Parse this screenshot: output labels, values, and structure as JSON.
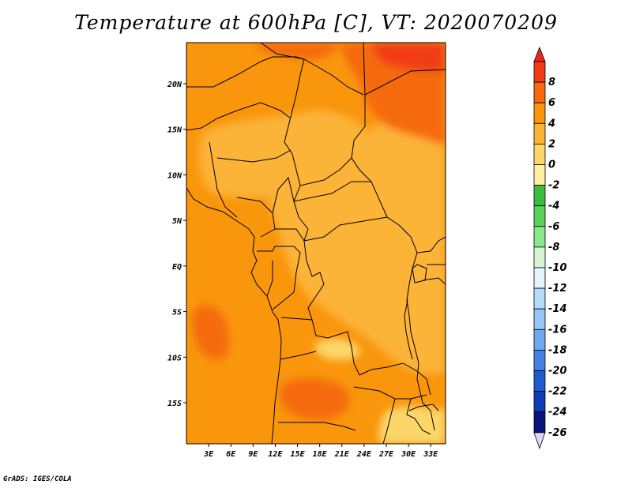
{
  "title": "Temperature at 600hPa [C], VT: 2020070209",
  "credit": "GrADS: IGES/COLA",
  "map": {
    "lon_range": [
      0,
      35
    ],
    "lat_range": [
      -19.5,
      24.5
    ],
    "lat_ticks": [
      {
        "value": 20,
        "label": "20N"
      },
      {
        "value": 15,
        "label": "15N"
      },
      {
        "value": 10,
        "label": "10N"
      },
      {
        "value": 5,
        "label": "5N"
      },
      {
        "value": 0,
        "label": "EQ"
      },
      {
        "value": -5,
        "label": "5S"
      },
      {
        "value": -10,
        "label": "10S"
      },
      {
        "value": -15,
        "label": "15S"
      }
    ],
    "lon_ticks": [
      {
        "value": 3,
        "label": "3E"
      },
      {
        "value": 6,
        "label": "6E"
      },
      {
        "value": 9,
        "label": "9E"
      },
      {
        "value": 12,
        "label": "12E"
      },
      {
        "value": 15,
        "label": "15E"
      },
      {
        "value": 18,
        "label": "18E"
      },
      {
        "value": 21,
        "label": "21E"
      },
      {
        "value": 24,
        "label": "24E"
      },
      {
        "value": 27,
        "label": "27E"
      },
      {
        "value": 30,
        "label": "30E"
      },
      {
        "value": 33,
        "label": "33E"
      }
    ]
  },
  "colorbar": {
    "levels": [
      {
        "label": "8",
        "color": "#f03c14"
      },
      {
        "label": "6",
        "color": "#f56a0f"
      },
      {
        "label": "4",
        "color": "#f9960c"
      },
      {
        "label": "2",
        "color": "#fbb337"
      },
      {
        "label": "0",
        "color": "#fdd66b"
      },
      {
        "label": "-2",
        "color": "#fff0a0"
      },
      {
        "label": "-4",
        "color": "#3cbc3c"
      },
      {
        "label": "-6",
        "color": "#5ad25a"
      },
      {
        "label": "-8",
        "color": "#8ce68c"
      },
      {
        "label": "-10",
        "color": "#d6f5d6"
      },
      {
        "label": "-12",
        "color": "#e4f4ff"
      },
      {
        "label": "-14",
        "color": "#b4dcfa"
      },
      {
        "label": "-16",
        "color": "#96c8f5"
      },
      {
        "label": "-18",
        "color": "#6eaaf0"
      },
      {
        "label": "-20",
        "color": "#4682e6"
      },
      {
        "label": "-22",
        "color": "#1e5ad2"
      },
      {
        "label": "-24",
        "color": "#0f3cb4"
      },
      {
        "label": "-26",
        "color": "#0a1478"
      }
    ],
    "top_triangle_color": "#e8281e",
    "bottom_triangle_color": "#e0d8f8"
  },
  "field_regions": [
    {
      "name": "southern-atlantic",
      "color": "#f9960c"
    },
    {
      "name": "saharan-warm-band",
      "color": "#f9960c"
    },
    {
      "name": "northeast-hot",
      "color": "#f56a0f"
    },
    {
      "name": "red-sea-max",
      "color": "#f03c14"
    },
    {
      "name": "angola-zambia-hot",
      "color": "#f56a0f"
    },
    {
      "name": "atlantic-warm-cell",
      "color": "#f56a0f"
    },
    {
      "name": "congo-basin",
      "color": "#fbb337"
    },
    {
      "name": "sahel-central",
      "color": "#fbb337"
    },
    {
      "name": "east-africa",
      "color": "#fbb337"
    },
    {
      "name": "mozambique-cool",
      "color": "#fdd66b"
    },
    {
      "name": "kasai-cool-spots",
      "color": "#fdd66b"
    }
  ]
}
